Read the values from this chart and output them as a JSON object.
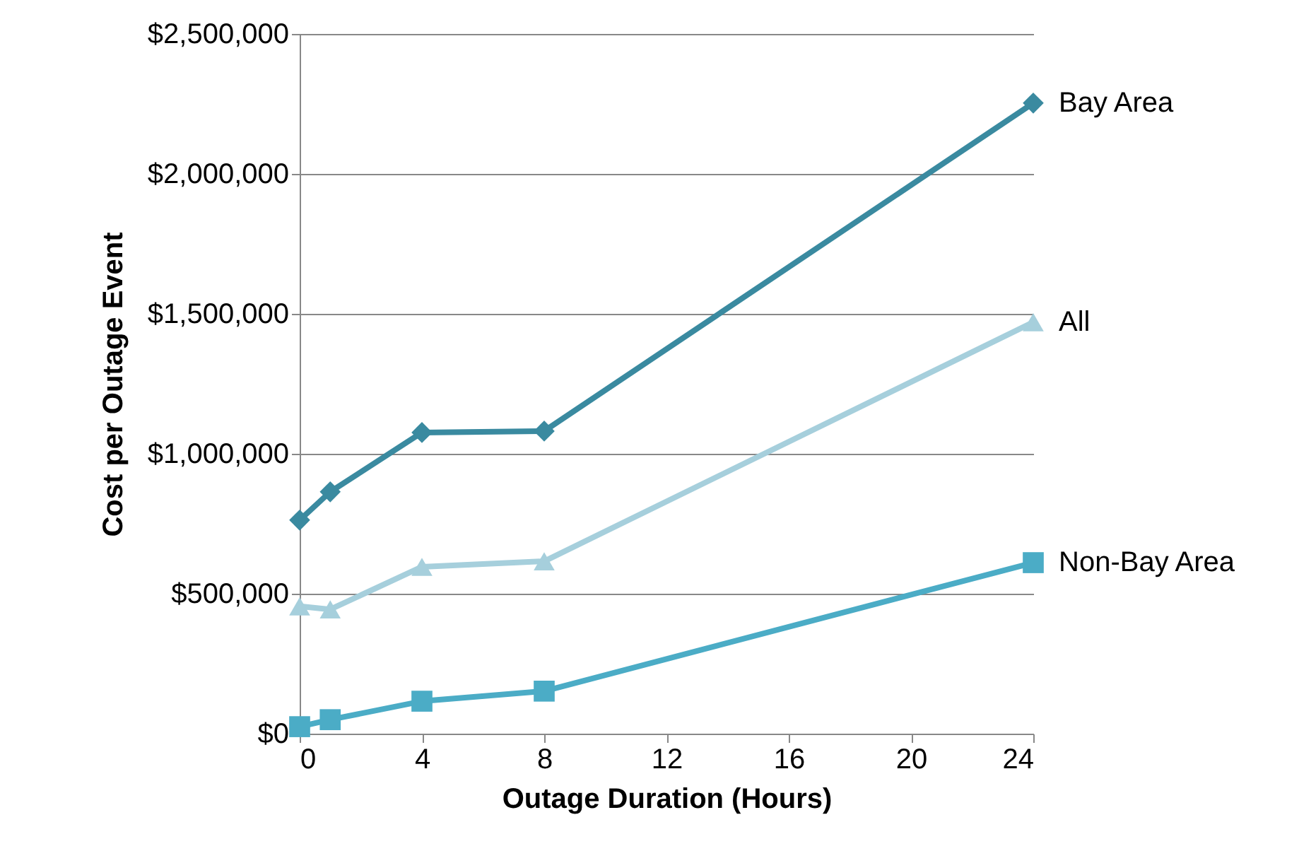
{
  "chart_data": {
    "type": "line",
    "xlabel": "Outage Duration (Hours)",
    "ylabel": "Cost per Outage Event",
    "x": [
      0,
      1,
      4,
      8,
      24
    ],
    "series": [
      {
        "name": "Bay Area",
        "color": "#3a8aa0",
        "marker": "diamond",
        "values": [
          763000,
          864000,
          1076000,
          1081000,
          2253000
        ]
      },
      {
        "name": "All",
        "color": "#a6cfdc",
        "marker": "triangle",
        "values": [
          455000,
          444000,
          596000,
          616000,
          1470000
        ]
      },
      {
        "name": "Non-Bay Area",
        "color": "#4bacc6",
        "marker": "square",
        "values": [
          25000,
          50000,
          116000,
          152000,
          611000
        ]
      }
    ],
    "xlim": [
      0,
      24
    ],
    "xticks": [
      0,
      4,
      8,
      12,
      16,
      20,
      24
    ],
    "ylim": [
      0,
      2500000
    ],
    "yticks": [
      {
        "value": 0,
        "label": "$0"
      },
      {
        "value": 500000,
        "label": "$500,000"
      },
      {
        "value": 1000000,
        "label": "$1,000,000"
      },
      {
        "value": 1500000,
        "label": "$1,500,000"
      },
      {
        "value": 2000000,
        "label": "$2,000,000"
      },
      {
        "value": 2500000,
        "label": "$2,500,000"
      }
    ],
    "grid": "y",
    "line_style": "solid"
  }
}
